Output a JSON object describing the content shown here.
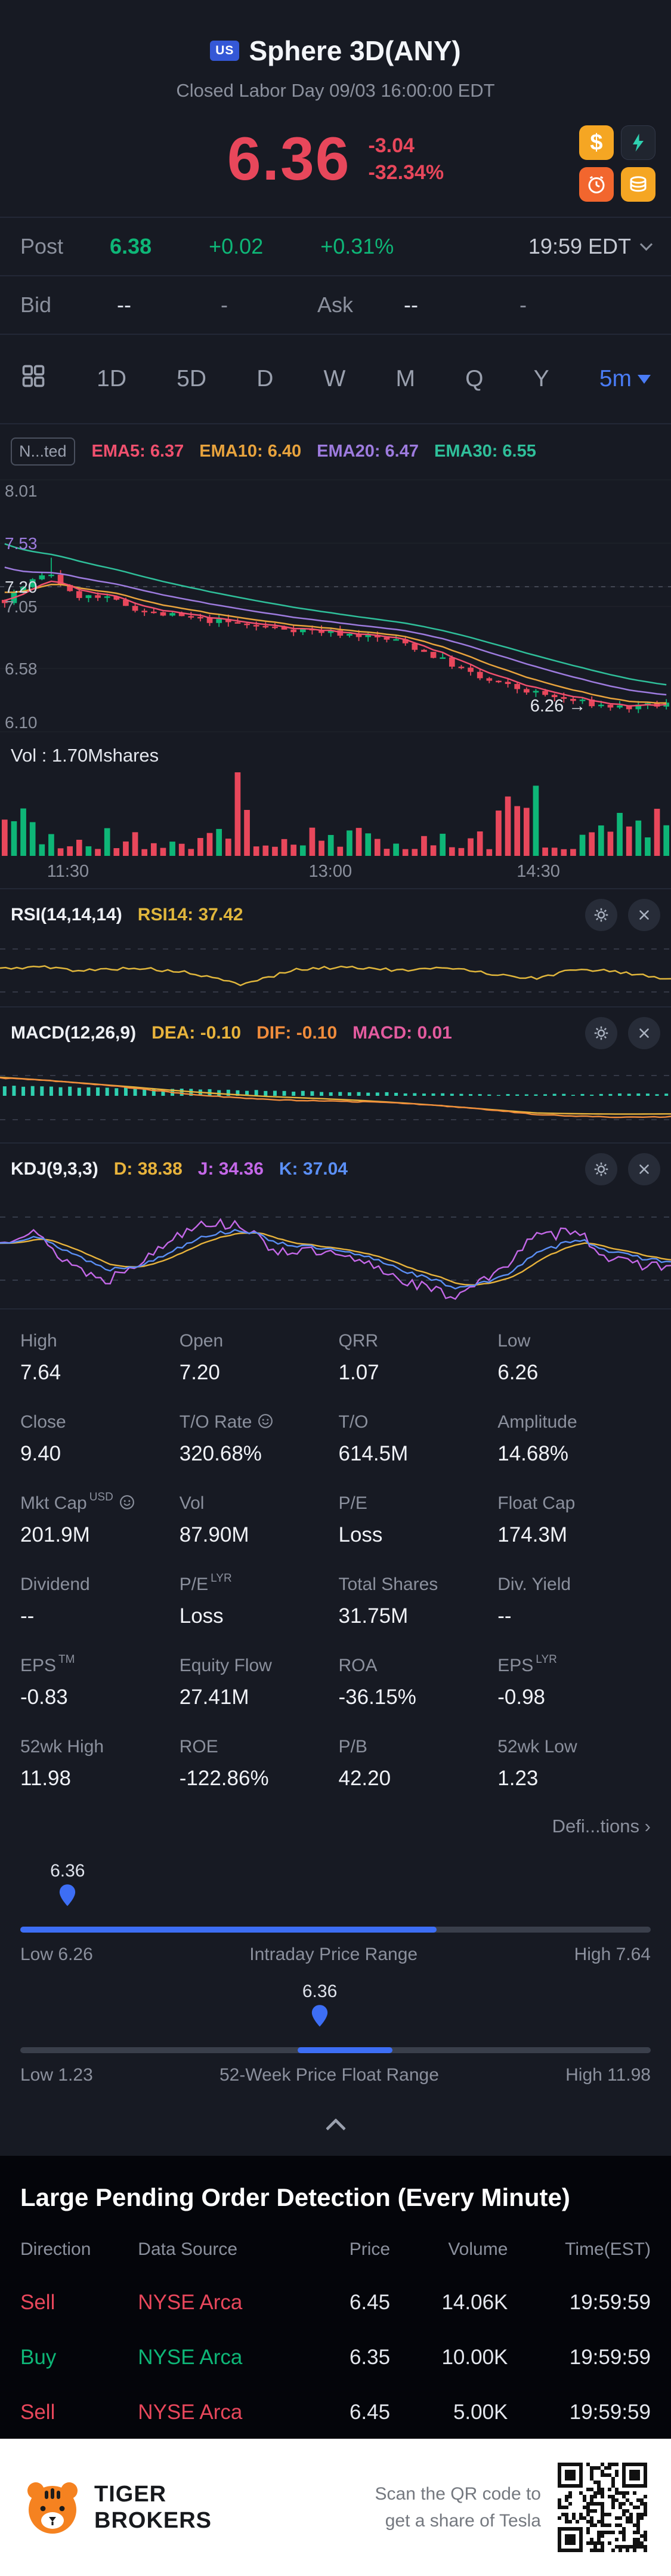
{
  "colors": {
    "bg": "#171a23",
    "red": "#e8475b",
    "green": "#0eb677",
    "blue": "#4a7cf5",
    "yellow": "#e0b63c",
    "orange": "#f08c3c",
    "purple": "#9d7bde",
    "teal": "#2fd0b0",
    "gray": "#8b909d"
  },
  "icons": {
    "feature_shortcuts": [
      "dollar-icon",
      "flash-icon",
      "alarm-icon",
      "coins-icon"
    ],
    "other": [
      "chart-grid-icon",
      "chevron-down-icon",
      "chevron-up-icon",
      "indicator-settings-icon",
      "indicator-close-icon",
      "info-icon",
      "pin-icon",
      "us-flag-icon",
      "tiger-logo",
      "qr-code"
    ]
  },
  "header": {
    "flag": "US",
    "title": "Sphere 3D(ANY)",
    "status": "Closed Labor Day 09/03 16:00:00 EDT"
  },
  "price": {
    "last": "6.36",
    "change": "-3.04",
    "change_pct": "-32.34%"
  },
  "post": {
    "label": "Post",
    "price": "6.38",
    "change": "+0.02",
    "change_pct": "+0.31%",
    "time": "19:59 EDT"
  },
  "quote": {
    "bid_label": "Bid",
    "bid_value": "--",
    "bid_size": "-",
    "ask_label": "Ask",
    "ask_value": "--",
    "ask_size": "-"
  },
  "timeframes": {
    "items": [
      "1D",
      "5D",
      "D",
      "W",
      "M",
      "Q",
      "Y"
    ],
    "selected_label": "5m"
  },
  "chart": {
    "badge": "N...ted",
    "ema_labels": [
      {
        "text": "EMA5: 6.37",
        "color": "#f0506e"
      },
      {
        "text": "EMA10: 6.40",
        "color": "#e8a33d"
      },
      {
        "text": "EMA20: 6.47",
        "color": "#9d7bde"
      },
      {
        "text": "EMA30: 6.55",
        "color": "#2fbf9a"
      }
    ]
  },
  "chart_data": {
    "type": "candlestick",
    "y_range": [
      6.1,
      8.01
    ],
    "y_labels": [
      {
        "text": "8.01",
        "price": 8.01,
        "color": "#8b909d"
      },
      {
        "text": "7.53",
        "price": 7.53,
        "color": "#9d7bde"
      },
      {
        "text": "7.20",
        "price": 7.2,
        "color": "#d9dde5"
      },
      {
        "text": "7.05",
        "price": 7.05,
        "color": "#8b909d"
      },
      {
        "text": "6.58",
        "price": 6.58,
        "color": "#8b909d"
      },
      {
        "text": "6.10",
        "price": 6.1,
        "color": "#8b909d"
      }
    ],
    "x_labels": [
      {
        "text": "11:30",
        "pct": 7
      },
      {
        "text": "13:00",
        "pct": 46
      },
      {
        "text": "14:30",
        "pct": 77
      }
    ],
    "dashed_price": 7.2,
    "last_label": {
      "text": "6.26 →",
      "price": 6.3,
      "pct_x": 79
    },
    "candle_count": 72,
    "trend": [
      [
        0,
        7.1
      ],
      [
        0.04,
        7.24
      ],
      [
        0.07,
        7.3
      ],
      [
        0.1,
        7.14
      ],
      [
        0.16,
        7.1
      ],
      [
        0.22,
        7.0
      ],
      [
        0.3,
        6.95
      ],
      [
        0.38,
        6.9
      ],
      [
        0.46,
        6.87
      ],
      [
        0.54,
        6.83
      ],
      [
        0.6,
        6.78
      ],
      [
        0.66,
        6.65
      ],
      [
        0.72,
        6.5
      ],
      [
        0.78,
        6.42
      ],
      [
        0.84,
        6.35
      ],
      [
        0.9,
        6.3
      ],
      [
        0.95,
        6.28
      ],
      [
        1,
        6.31
      ]
    ],
    "volume_label": "Vol : 1.70Mshares",
    "indicator_series": {
      "rsi_anchors": [
        [
          0,
          48
        ],
        [
          0.06,
          50
        ],
        [
          0.12,
          46
        ],
        [
          0.2,
          49
        ],
        [
          0.28,
          44
        ],
        [
          0.36,
          32
        ],
        [
          0.44,
          47
        ],
        [
          0.52,
          50
        ],
        [
          0.6,
          46
        ],
        [
          0.68,
          49
        ],
        [
          0.74,
          42
        ],
        [
          0.8,
          38
        ],
        [
          0.86,
          48
        ],
        [
          0.92,
          45
        ],
        [
          1,
          37.4
        ]
      ],
      "macd_dif_anchors": [
        [
          0,
          0.08
        ],
        [
          0.2,
          0.04
        ],
        [
          0.4,
          -0.01
        ],
        [
          0.6,
          -0.05
        ],
        [
          0.8,
          -0.09
        ],
        [
          1,
          -0.1
        ]
      ],
      "macd_hist_anchors": [
        [
          0,
          0.05
        ],
        [
          0.5,
          0.02
        ],
        [
          0.75,
          0.006
        ],
        [
          1,
          0.01
        ]
      ],
      "kdj_k_anchors": [
        [
          0,
          55
        ],
        [
          0.05,
          62
        ],
        [
          0.1,
          48
        ],
        [
          0.16,
          30
        ],
        [
          0.22,
          36
        ],
        [
          0.3,
          62
        ],
        [
          0.36,
          68
        ],
        [
          0.42,
          55
        ],
        [
          0.5,
          48
        ],
        [
          0.56,
          40
        ],
        [
          0.62,
          25
        ],
        [
          0.68,
          13
        ],
        [
          0.74,
          20
        ],
        [
          0.8,
          45
        ],
        [
          0.86,
          60
        ],
        [
          0.92,
          45
        ],
        [
          1,
          37
        ]
      ]
    }
  },
  "indicators": {
    "rsi": {
      "name": "RSI(14,14,14)",
      "values": [
        {
          "text": "RSI14: 37.42",
          "color": "#e0b63c"
        }
      ]
    },
    "macd": {
      "name": "MACD(12,26,9)",
      "values": [
        {
          "text": "DEA: -0.10",
          "color": "#e8b33c"
        },
        {
          "text": "DIF: -0.10",
          "color": "#f08c3c"
        },
        {
          "text": "MACD: 0.01",
          "color": "#e35b9f"
        }
      ]
    },
    "kdj": {
      "name": "KDJ(9,3,3)",
      "values": [
        {
          "text": "D: 38.38",
          "color": "#e8b33c"
        },
        {
          "text": "J: 34.36",
          "color": "#c468e8"
        },
        {
          "text": "K: 37.04",
          "color": "#5b8ff5"
        }
      ]
    }
  },
  "stats": {
    "cells": [
      {
        "label": "High",
        "value": "7.64"
      },
      {
        "label": "Open",
        "value": "7.20"
      },
      {
        "label": "QRR",
        "value": "1.07"
      },
      {
        "label": "Low",
        "value": "6.26"
      },
      {
        "label": "Close",
        "value": "9.40"
      },
      {
        "label": "T/O Rate",
        "value": "320.68%",
        "info": true
      },
      {
        "label": "T/O",
        "value": "614.5M"
      },
      {
        "label": "Amplitude",
        "value": "14.68%"
      },
      {
        "label": "Mkt Cap",
        "sup": "USD",
        "value": "201.9M",
        "info": true
      },
      {
        "label": "Vol",
        "value": "87.90M"
      },
      {
        "label": "P/E",
        "value": "Loss"
      },
      {
        "label": "Float Cap",
        "value": "174.3M"
      },
      {
        "label": "Dividend",
        "value": "--"
      },
      {
        "label": "P/E",
        "sup": "LYR",
        "value": "Loss"
      },
      {
        "label": "Total Shares",
        "value": "31.75M"
      },
      {
        "label": "Div. Yield",
        "value": "--"
      },
      {
        "label": "EPS",
        "sup": "TM",
        "value": "-0.83"
      },
      {
        "label": "Equity Flow",
        "value": "27.41M"
      },
      {
        "label": "ROA",
        "value": "-36.15%"
      },
      {
        "label": "EPS",
        "sup": "LYR",
        "value": "-0.98"
      },
      {
        "label": "52wk High",
        "value": "11.98"
      },
      {
        "label": "ROE",
        "value": "-122.86%"
      },
      {
        "label": "P/B",
        "value": "42.20"
      },
      {
        "label": "52wk Low",
        "value": "1.23"
      }
    ],
    "definitions_label": "Defi...tions",
    "definitions_arrow": "›"
  },
  "sliders": {
    "intraday": {
      "value": "6.36",
      "low_label": "Low 6.26",
      "title": "Intraday Price Range",
      "high_label": "High 7.64",
      "pin_pct": 7.5,
      "fill_start_pct": 0,
      "fill_end_pct": 66
    },
    "week52": {
      "value": "6.36",
      "low_label": "Low 1.23",
      "title": "52-Week Price Float Range",
      "high_label": "High 11.98",
      "pin_pct": 47.5,
      "fill_start_pct": 44,
      "fill_end_pct": 59
    }
  },
  "pending_orders": {
    "title": "Large Pending Order Detection (Every Minute)",
    "headers": [
      "Direction",
      "Data Source",
      "Price",
      "Volume",
      "Time(EST)"
    ],
    "rows": [
      {
        "direction": "Sell",
        "source": "NYSE Arca",
        "price": "6.45",
        "volume": "14.06K",
        "time": "19:59:59",
        "side": "sell"
      },
      {
        "direction": "Buy",
        "source": "NYSE Arca",
        "price": "6.35",
        "volume": "10.00K",
        "time": "19:59:59",
        "side": "buy"
      },
      {
        "direction": "Sell",
        "source": "NYSE Arca",
        "price": "6.45",
        "volume": "5.00K",
        "time": "19:59:59",
        "side": "sell"
      }
    ]
  },
  "footer": {
    "brand_line1": "TIGER",
    "brand_line2": "BROKERS",
    "scan_line1": "Scan the QR code to",
    "scan_line2": "get a share of Tesla"
  }
}
